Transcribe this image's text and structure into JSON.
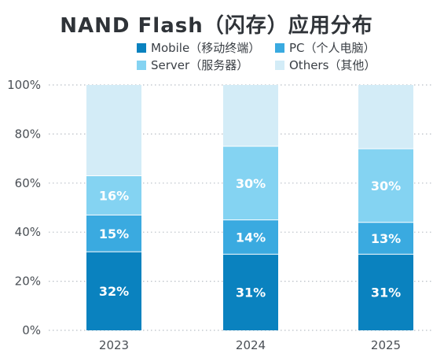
{
  "title": "NAND Flash（闪存）应用分布",
  "legend": [
    {
      "label": "Mobile（移动终端）",
      "color": "#0a82bf"
    },
    {
      "label": "PC（个人电脑）",
      "color": "#3aaae0"
    },
    {
      "label": "Server（服务器）",
      "color": "#84d3f2"
    },
    {
      "label": "Others（其他）",
      "color": "#d3ecf7"
    }
  ],
  "chart_data": {
    "type": "bar",
    "stacked": true,
    "title": "NAND Flash（闪存）应用分布",
    "categories": [
      "2023",
      "2024",
      "2025"
    ],
    "series": [
      {
        "name": "Mobile（移动终端）",
        "values": [
          32,
          31,
          31
        ],
        "labels": [
          "32%",
          "31%",
          "31%"
        ],
        "color": "#0a82bf"
      },
      {
        "name": "PC（个人电脑）",
        "values": [
          15,
          14,
          13
        ],
        "labels": [
          "15%",
          "14%",
          "13%"
        ],
        "color": "#3aaae0"
      },
      {
        "name": "Server（服务器）",
        "values": [
          16,
          30,
          30
        ],
        "labels": [
          "16%",
          "30%",
          "30%"
        ],
        "color": "#84d3f2"
      },
      {
        "name": "Others（其他）",
        "values": [
          37,
          25,
          26
        ],
        "labels": [
          "",
          "",
          ""
        ],
        "color": "#d3ecf7"
      }
    ],
    "y_ticks": [
      "0%",
      "20%",
      "40%",
      "60%",
      "80%",
      "100%"
    ],
    "ylim": [
      0,
      100
    ],
    "grid": "dotted horizontal",
    "legend_position": "top"
  }
}
